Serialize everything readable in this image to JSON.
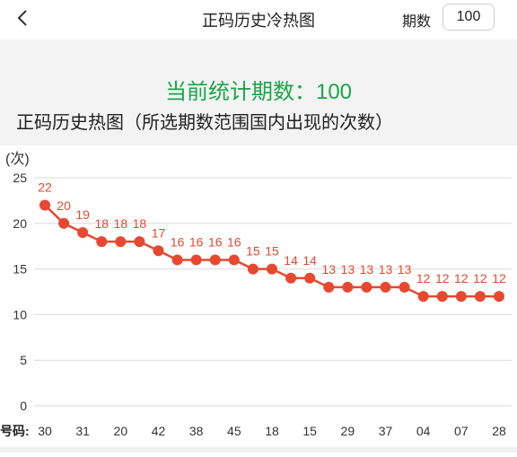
{
  "header": {
    "title": "正码历史冷热图",
    "period_label": "期数",
    "period_value": "100"
  },
  "summary": {
    "stat_text": "当前统计期数：100",
    "subtitle": "正码历史热图（所选期数范围国内出现的次数）"
  },
  "colors": {
    "accent": "#e8482f",
    "stat_green": "#19a64a",
    "grid": "#d9d9d9"
  },
  "chart_data": {
    "type": "line",
    "ylabel": "(次)",
    "xlabel_prefix": "号码:",
    "ylim": [
      0,
      25
    ],
    "yticks": [
      0,
      5,
      10,
      15,
      20,
      25
    ],
    "xtick_labels": [
      "30",
      "31",
      "20",
      "42",
      "38",
      "45",
      "18",
      "15",
      "29",
      "37",
      "04",
      "07",
      "28"
    ],
    "values": [
      22,
      20,
      19,
      18,
      18,
      18,
      17,
      16,
      16,
      16,
      16,
      15,
      15,
      14,
      14,
      13,
      13,
      13,
      13,
      13,
      12,
      12,
      12,
      12,
      12
    ],
    "grid": true,
    "legend": "none"
  }
}
